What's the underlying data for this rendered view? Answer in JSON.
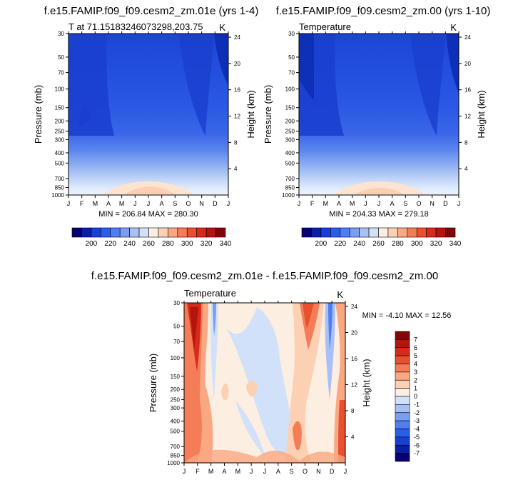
{
  "chart_data": [
    {
      "type": "heatmap",
      "title": "f.e15.FAMIP.f09_f09.cesm2_zm.01e (yrs 1-4)",
      "subtitle_left": "T at 71.15183246073298,203.75",
      "subtitle_right": "K",
      "ylabel": "Pressure (mb)",
      "ylabel_right": "Height (km)",
      "x_ticks": [
        "J",
        "F",
        "M",
        "A",
        "M",
        "J",
        "J",
        "A",
        "S",
        "O",
        "N",
        "D",
        "J"
      ],
      "y_ticks": [
        30,
        50,
        70,
        100,
        150,
        200,
        250,
        300,
        400,
        500,
        700,
        850,
        1000
      ],
      "y_right_ticks": [
        24,
        20,
        16,
        12,
        8,
        4
      ],
      "stats": "MIN = 206.84 MAX = 280.30"
    },
    {
      "type": "heatmap",
      "title": "f.e15.FAMIP.f09_f09.cesm2_zm.00 (yrs 1-10)",
      "subtitle_left": "Temperature",
      "subtitle_right": "K",
      "ylabel": "Pressure (mb)",
      "ylabel_right": "Height (km)",
      "x_ticks": [
        "J",
        "F",
        "M",
        "A",
        "M",
        "J",
        "J",
        "A",
        "S",
        "O",
        "N",
        "D",
        "J"
      ],
      "y_ticks": [
        30,
        50,
        70,
        100,
        150,
        200,
        250,
        300,
        400,
        500,
        700,
        850,
        1000
      ],
      "y_right_ticks": [
        24,
        20,
        16,
        12,
        8,
        4
      ],
      "stats": "MIN = 204.33 MAX = 279.18"
    },
    {
      "type": "heatmap",
      "title": "f.e15.FAMIP.f09_f09.cesm2_zm.01e - f.e15.FAMIP.f09_f09.cesm2_zm.00",
      "subtitle_left": "Temperature",
      "subtitle_right": "K",
      "ylabel": "Pressure (mb)",
      "ylabel_right": "Height (km)",
      "x_ticks": [
        "J",
        "F",
        "M",
        "A",
        "M",
        "J",
        "J",
        "A",
        "S",
        "O",
        "N",
        "D",
        "J"
      ],
      "y_ticks": [
        30,
        50,
        70,
        100,
        150,
        200,
        250,
        300,
        400,
        500,
        700,
        850,
        1000
      ],
      "y_right_ticks": [
        24,
        20,
        16,
        12,
        8,
        4
      ],
      "stats": "MIN = -4.10 MAX =  12.56"
    }
  ],
  "colorbar_abs": {
    "labels": [
      "200",
      "220",
      "240",
      "260",
      "280",
      "300",
      "320",
      "340"
    ],
    "colors": [
      "#08006f",
      "#0a1fa8",
      "#1740d4",
      "#2a5ee8",
      "#4f7ef0",
      "#7a9ef2",
      "#a8c0f5",
      "#d2e1fa",
      "#fdeee2",
      "#fcd0b3",
      "#f9a882",
      "#f47d58",
      "#e8502f",
      "#d62b1a",
      "#b2140e",
      "#800508"
    ]
  },
  "colorbar_diff": {
    "labels": [
      "7",
      "6",
      "5",
      "4",
      "3",
      "2",
      "1",
      "0",
      "-1",
      "-2",
      "-3",
      "-4",
      "-5",
      "-6",
      "-7"
    ],
    "colors": [
      "#800508",
      "#b2140e",
      "#d62b1a",
      "#e8502f",
      "#f47d58",
      "#f9a882",
      "#fcd0b3",
      "#fdeee2",
      "#d2e1fa",
      "#a8c0f5",
      "#7a9ef2",
      "#4f7ef0",
      "#2a5ee8",
      "#1740d4",
      "#0a1fa8",
      "#08006f"
    ]
  }
}
